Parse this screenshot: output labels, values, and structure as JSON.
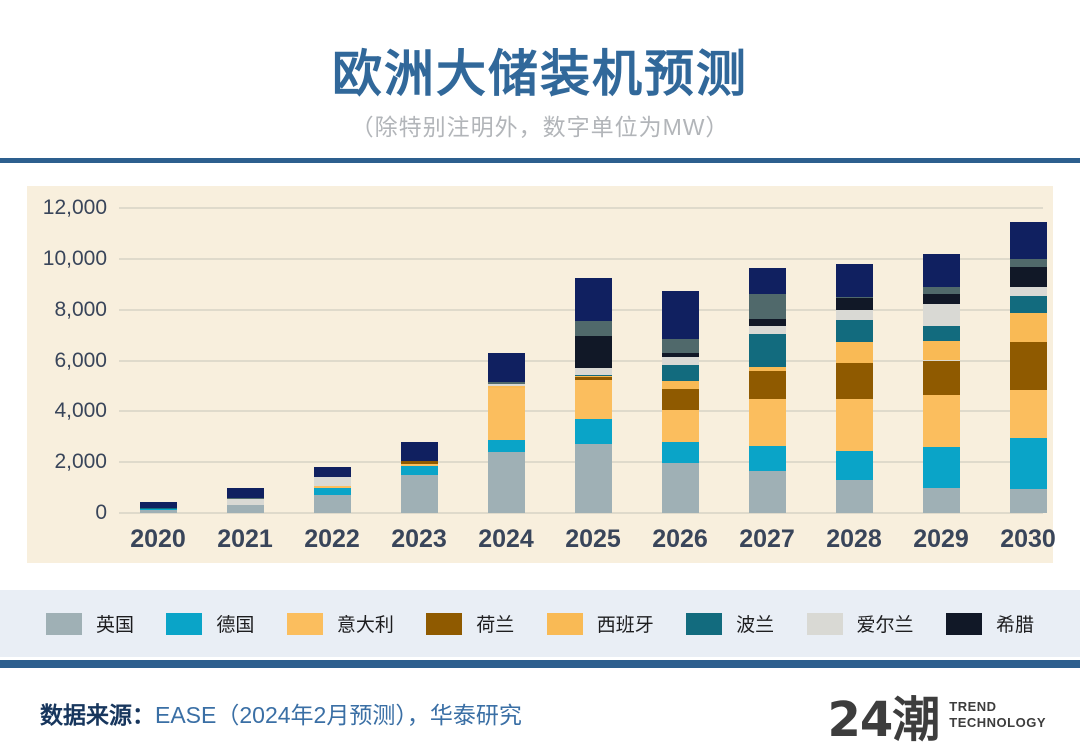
{
  "header": {
    "title": "欧洲大储装机预测",
    "subtitle": "（除特别注明外，数字单位为MW）"
  },
  "chart_data": {
    "type": "bar",
    "stacked": true,
    "title": "欧洲大储装机预测",
    "unit": "MW",
    "xlabel": "",
    "ylabel": "",
    "ylim": [
      0,
      12000
    ],
    "yticks": [
      0,
      2000,
      4000,
      6000,
      8000,
      10000,
      12000
    ],
    "ytick_labels": [
      "0",
      "2,000",
      "4,000",
      "6,000",
      "8,000",
      "10,000",
      "12,000"
    ],
    "grid": true,
    "legend_position": "bottom",
    "plot_bg": "#F8EFDD",
    "categories": [
      "2020",
      "2021",
      "2022",
      "2023",
      "2024",
      "2025",
      "2026",
      "2027",
      "2028",
      "2029",
      "2030"
    ],
    "series": [
      {
        "name": "英国",
        "color": "#9FB0B5",
        "in_legend": true,
        "values": [
          130,
          300,
          700,
          1500,
          2400,
          2700,
          1950,
          1650,
          1280,
          1000,
          940
        ]
      },
      {
        "name": "德国",
        "color": "#0AA4C8",
        "in_legend": true,
        "values": [
          40,
          0,
          280,
          330,
          480,
          1000,
          850,
          980,
          1140,
          1580,
          2000
        ]
      },
      {
        "name": "意大利",
        "color": "#FBBE5E",
        "in_legend": true,
        "values": [
          0,
          0,
          80,
          80,
          2050,
          1550,
          1240,
          1850,
          2050,
          2050,
          1900
        ]
      },
      {
        "name": "荷兰",
        "color": "#8F5A00",
        "in_legend": true,
        "values": [
          0,
          0,
          0,
          150,
          0,
          100,
          850,
          1120,
          1440,
          1370,
          1900
        ]
      },
      {
        "name": "西班牙",
        "color": "#F9BA55",
        "in_legend": true,
        "values": [
          0,
          0,
          0,
          0,
          80,
          50,
          300,
          150,
          820,
          785,
          1110
        ]
      },
      {
        "name": "波兰",
        "color": "#126B7E",
        "in_legend": true,
        "values": [
          40,
          0,
          0,
          0,
          0,
          30,
          640,
          1280,
          875,
          590,
          680
        ]
      },
      {
        "name": "爱尔兰",
        "color": "#D9D9D4",
        "in_legend": true,
        "values": [
          0,
          250,
          350,
          0,
          80,
          260,
          300,
          330,
          365,
          850,
          365
        ]
      },
      {
        "name": "希腊",
        "color": "#111827",
        "in_legend": true,
        "values": [
          0,
          0,
          0,
          0,
          0,
          1280,
          160,
          260,
          500,
          390,
          785
        ]
      },
      {
        "name": "unlabeled_slate",
        "color": "#50696B",
        "in_legend": false,
        "values": [
          0,
          30,
          0,
          0,
          60,
          590,
          560,
          1000,
          30,
          290,
          325
        ]
      },
      {
        "name": "unlabeled_navy",
        "color": "#102060",
        "in_legend": false,
        "values": [
          220,
          420,
          390,
          740,
          1150,
          1690,
          1900,
          1030,
          1300,
          1295,
          1445
        ]
      }
    ],
    "totals": [
      430,
      1000,
      1800,
      2800,
      6300,
      9250,
      8750,
      9650,
      9800,
      10200,
      11450
    ]
  },
  "footer": {
    "source_label": "数据来源：",
    "source_text": "EASE（2024年2月预测），华泰研究",
    "logo_mark": "24潮",
    "logo_line1": "TREND",
    "logo_line2": "TECHNOLOGY"
  },
  "colors": {
    "title": "#31689A",
    "divider": "#2D5F8E",
    "legend_bg": "#E9EEF5",
    "plot_bg": "#F8EFDD",
    "axis_text": "#39455A"
  }
}
